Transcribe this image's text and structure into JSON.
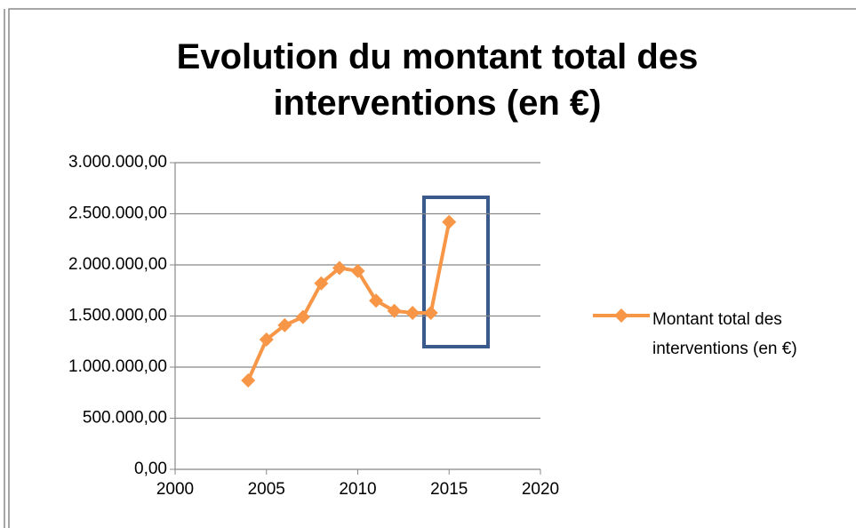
{
  "chart_data": {
    "type": "line",
    "title": "Evolution du montant total des interventions (en €)",
    "x": [
      2004,
      2005,
      2006,
      2007,
      2008,
      2009,
      2010,
      2011,
      2012,
      2013,
      2014,
      2015
    ],
    "series": [
      {
        "name": "Montant total des interventions (en €)",
        "color": "#f79646",
        "values": [
          870000,
          1270000,
          1410000,
          1490000,
          1820000,
          1970000,
          1940000,
          1650000,
          1550000,
          1530000,
          1530000,
          2420000
        ]
      }
    ],
    "xlim": [
      2000,
      2020
    ],
    "xticks": [
      2000,
      2005,
      2010,
      2015,
      2020
    ],
    "ylim": [
      0,
      3000000
    ],
    "yticks": [
      {
        "value": 0,
        "label": "0,00"
      },
      {
        "value": 500000,
        "label": "500.000,00"
      },
      {
        "value": 1000000,
        "label": "1.000.000,00"
      },
      {
        "value": 1500000,
        "label": "1.500.000,00"
      },
      {
        "value": 2000000,
        "label": "2.000.000,00"
      },
      {
        "value": 2500000,
        "label": "2.500.000,00"
      },
      {
        "value": 3000000,
        "label": "3.000.000,00"
      }
    ],
    "grid": true,
    "legend": "right"
  }
}
